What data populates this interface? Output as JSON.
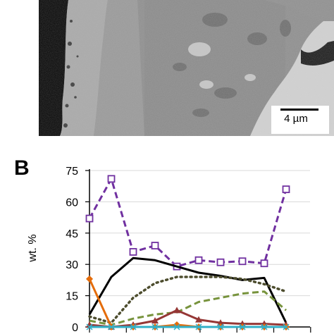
{
  "panel_label": "B",
  "micrograph": {
    "scale_bar_label": "4 µm"
  },
  "colors": {
    "purple": "#7030a0",
    "black": "#000000",
    "olive_dotted": "#4d4d2e",
    "green_dashed": "#77933c",
    "red": "#953735",
    "orange": "#e46c0a",
    "cyan": "#31b0c8",
    "blue": "#4f81bd"
  },
  "chart_data": {
    "type": "line",
    "ylabel": "wt. %",
    "xlabel": "",
    "ylim": [
      0,
      75
    ],
    "yticks": [
      "0",
      "15",
      "30",
      "45",
      "60",
      "75"
    ],
    "ytick_values": [
      0,
      15,
      30,
      45,
      60,
      75
    ],
    "grid": true,
    "x": [
      0,
      1,
      2,
      3,
      4,
      5,
      6,
      7,
      8,
      9,
      10,
      11
    ],
    "series": [
      {
        "color": "#7030a0",
        "style": "dashed",
        "marker": "square-open",
        "points": [
          [
            0,
            52
          ],
          [
            1,
            71
          ],
          [
            2,
            36
          ],
          [
            3,
            39
          ],
          [
            4,
            29
          ],
          [
            5,
            32
          ],
          [
            6,
            31
          ],
          [
            7,
            31.5
          ],
          [
            8,
            30.5
          ],
          [
            9,
            66
          ]
        ]
      },
      {
        "color": "#000000",
        "style": "solid",
        "marker": "none",
        "points": [
          [
            0,
            6
          ],
          [
            1,
            24
          ],
          [
            2,
            33
          ],
          [
            3,
            32
          ],
          [
            4,
            29
          ],
          [
            5,
            26
          ],
          [
            6,
            24.5
          ],
          [
            7,
            22.5
          ],
          [
            8,
            23.5
          ],
          [
            9,
            2
          ]
        ]
      },
      {
        "color": "#4d4d2e",
        "style": "dotted",
        "marker": "none",
        "points": [
          [
            0,
            5
          ],
          [
            1,
            2
          ],
          [
            2,
            14
          ],
          [
            3,
            21
          ],
          [
            4,
            24
          ],
          [
            5,
            24
          ],
          [
            6,
            24
          ],
          [
            7,
            23
          ],
          [
            8,
            20.5
          ],
          [
            9,
            17
          ]
        ]
      },
      {
        "color": "#77933c",
        "style": "dashed",
        "marker": "none",
        "points": [
          [
            0,
            3
          ],
          [
            1,
            1
          ],
          [
            2,
            4
          ],
          [
            3,
            6
          ],
          [
            4,
            7
          ],
          [
            5,
            12
          ],
          [
            6,
            14
          ],
          [
            7,
            16
          ],
          [
            8,
            17
          ],
          [
            9,
            8
          ]
        ]
      },
      {
        "color": "#953735",
        "style": "solid",
        "marker": "triangle",
        "points": [
          [
            0,
            1
          ],
          [
            1,
            0
          ],
          [
            2,
            1
          ],
          [
            3,
            3
          ],
          [
            4,
            8
          ],
          [
            5,
            3.5
          ],
          [
            6,
            2
          ],
          [
            7,
            1.5
          ],
          [
            8,
            1.5
          ],
          [
            9,
            1
          ]
        ]
      },
      {
        "color": "#e46c0a",
        "style": "solid",
        "marker": "diamond",
        "points": [
          [
            0,
            23
          ],
          [
            1,
            0
          ],
          [
            2,
            0
          ],
          [
            3,
            0
          ],
          [
            4,
            1
          ],
          [
            5,
            0
          ],
          [
            6,
            0
          ],
          [
            7,
            0
          ],
          [
            8,
            0
          ],
          [
            9,
            0
          ]
        ]
      },
      {
        "color": "#31b0c8",
        "style": "solid",
        "marker": "star",
        "points": [
          [
            0,
            0
          ],
          [
            1,
            0
          ],
          [
            2,
            0
          ],
          [
            3,
            0
          ],
          [
            4,
            0
          ],
          [
            5,
            0
          ],
          [
            6,
            0
          ],
          [
            7,
            0
          ],
          [
            8,
            0
          ],
          [
            9,
            0
          ]
        ]
      }
    ]
  }
}
